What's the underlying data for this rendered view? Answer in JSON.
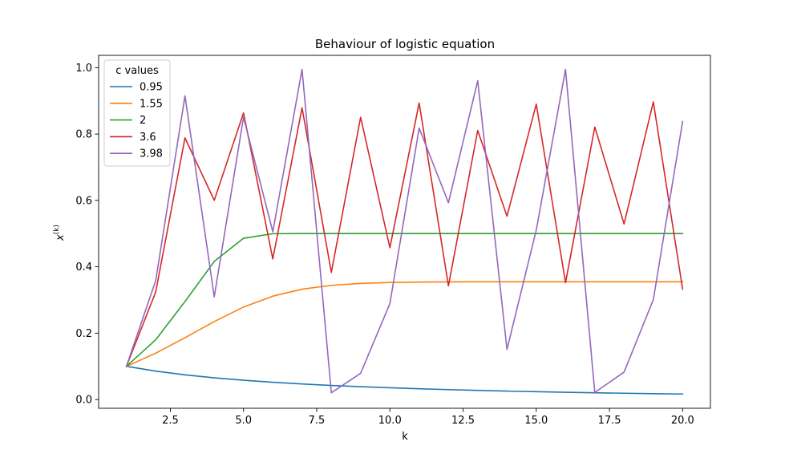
{
  "chart_data": {
    "type": "line",
    "title": "Behaviour of logistic equation",
    "xlabel": "k",
    "ylabel": "x(k)",
    "ylabel_base": "x",
    "ylabel_sup": "(k)",
    "xlim": [
      0.05,
      20.95
    ],
    "ylim": [
      -0.0265,
      1.0372
    ],
    "xticks": [
      2.5,
      5.0,
      7.5,
      10.0,
      12.5,
      15.0,
      17.5,
      20.0
    ],
    "xtick_labels": [
      "2.5",
      "5.0",
      "7.5",
      "10.0",
      "12.5",
      "15.0",
      "17.5",
      "20.0"
    ],
    "yticks": [
      0.0,
      0.2,
      0.4,
      0.6,
      0.8,
      1.0
    ],
    "ytick_labels": [
      "0.0",
      "0.2",
      "0.4",
      "0.6",
      "0.8",
      "1.0"
    ],
    "grid": false,
    "legend": {
      "title": "c values",
      "position": "top-left"
    },
    "x": [
      1,
      2,
      3,
      4,
      5,
      6,
      7,
      8,
      9,
      10,
      11,
      12,
      13,
      14,
      15,
      16,
      17,
      18,
      19,
      20
    ],
    "series": [
      {
        "name": "0.95",
        "color": "#1f77b4",
        "values": [
          0.1,
          0.0855,
          0.0743,
          0.0653,
          0.058,
          0.0519,
          0.0467,
          0.0423,
          0.0385,
          0.0352,
          0.0323,
          0.0297,
          0.0274,
          0.0253,
          0.0234,
          0.0217,
          0.0202,
          0.0188,
          0.0175,
          0.0164
        ]
      },
      {
        "name": "1.55",
        "color": "#ff7f0e",
        "values": [
          0.1,
          0.1395,
          0.1861,
          0.2348,
          0.2785,
          0.3115,
          0.3324,
          0.344,
          0.3498,
          0.3525,
          0.3538,
          0.3544,
          0.3546,
          0.3547,
          0.3548,
          0.3548,
          0.3548,
          0.3548,
          0.3548,
          0.3548
        ]
      },
      {
        "name": "2",
        "color": "#2ca02c",
        "values": [
          0.1,
          0.18,
          0.2952,
          0.4161,
          0.4859,
          0.4996,
          0.5,
          0.5,
          0.5,
          0.5,
          0.5,
          0.5,
          0.5,
          0.5,
          0.5,
          0.5,
          0.5,
          0.5,
          0.5,
          0.5
        ]
      },
      {
        "name": "3.6",
        "color": "#d62728",
        "values": [
          0.1,
          0.324,
          0.7885,
          0.6003,
          0.8638,
          0.4235,
          0.879,
          0.3829,
          0.8506,
          0.4574,
          0.8935,
          0.3426,
          0.8108,
          0.5523,
          0.8902,
          0.352,
          0.8211,
          0.5288,
          0.897,
          0.3327
        ]
      },
      {
        "name": "3.98",
        "color": "#9467bd",
        "values": [
          0.1,
          0.3582,
          0.915,
          0.3096,
          0.8507,
          0.5055,
          0.9949,
          0.0202,
          0.0788,
          0.289,
          0.8178,
          0.5931,
          0.9605,
          0.151,
          0.5103,
          0.9947,
          0.0212,
          0.0825,
          0.3011,
          0.8376
        ]
      }
    ]
  }
}
